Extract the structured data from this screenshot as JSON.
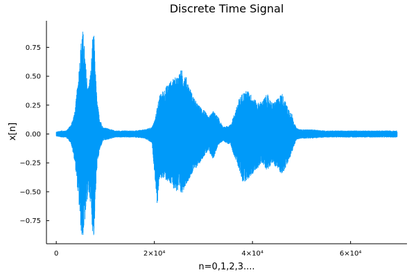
{
  "chart_data": {
    "type": "line",
    "title": "Discrete Time Signal",
    "xlabel": "n=0,1,2,3....",
    "ylabel": "x[n]",
    "xlim": [
      -2000,
      71500
    ],
    "ylim": [
      -0.95,
      0.98
    ],
    "x_ticks": [
      {
        "value": 0,
        "label": "0"
      },
      {
        "value": 20000,
        "label": "2×10⁴"
      },
      {
        "value": 40000,
        "label": "4×10⁴"
      },
      {
        "value": 60000,
        "label": "6×10⁴"
      }
    ],
    "y_ticks": [
      {
        "value": -0.75,
        "label": "−0.75"
      },
      {
        "value": -0.5,
        "label": "−0.50"
      },
      {
        "value": -0.25,
        "label": "−0.25"
      },
      {
        "value": 0.0,
        "label": "0.00"
      },
      {
        "value": 0.25,
        "label": "0.25"
      },
      {
        "value": 0.5,
        "label": "0.50"
      },
      {
        "value": 0.75,
        "label": "0.75"
      }
    ],
    "grid": false,
    "legend": false,
    "series": [
      {
        "color": "#009af9",
        "samples": 69500,
        "envelope": {
          "x": [
            0,
            1000,
            2000,
            3000,
            3800,
            4500,
            5000,
            5300,
            5600,
            6000,
            6500,
            7000,
            7400,
            7700,
            8000,
            8300,
            8800,
            9500,
            10500,
            12000,
            14000,
            16000,
            18000,
            19500,
            20200,
            20600,
            21000,
            21800,
            23000,
            24500,
            25500,
            26300,
            27000,
            28000,
            29000,
            30000,
            31000,
            32000,
            33000,
            34000,
            35500,
            36500,
            37200,
            38000,
            39000,
            40000,
            41000,
            42000,
            43000,
            44000,
            45000,
            46000,
            47000,
            48000,
            48500,
            49000,
            50000,
            52000,
            55000,
            58000,
            61000,
            64000,
            67000,
            69500
          ],
          "upper": [
            0.02,
            0.03,
            0.03,
            0.08,
            0.2,
            0.5,
            0.78,
            0.92,
            0.85,
            0.6,
            0.4,
            0.55,
            0.82,
            0.88,
            0.55,
            0.3,
            0.15,
            0.06,
            0.05,
            0.03,
            0.03,
            0.03,
            0.04,
            0.06,
            0.14,
            0.25,
            0.33,
            0.38,
            0.45,
            0.5,
            0.56,
            0.52,
            0.43,
            0.32,
            0.25,
            0.22,
            0.15,
            0.2,
            0.15,
            0.06,
            0.08,
            0.2,
            0.3,
            0.36,
            0.38,
            0.33,
            0.27,
            0.29,
            0.35,
            0.27,
            0.3,
            0.36,
            0.25,
            0.18,
            0.1,
            0.05,
            0.04,
            0.04,
            0.03,
            0.03,
            0.03,
            0.03,
            0.03,
            0.03
          ],
          "lower": [
            -0.02,
            -0.03,
            -0.03,
            -0.08,
            -0.25,
            -0.55,
            -0.82,
            -0.93,
            -0.85,
            -0.7,
            -0.5,
            -0.6,
            -0.85,
            -0.9,
            -0.55,
            -0.3,
            -0.15,
            -0.06,
            -0.05,
            -0.03,
            -0.03,
            -0.03,
            -0.04,
            -0.08,
            -0.42,
            -0.63,
            -0.4,
            -0.38,
            -0.43,
            -0.5,
            -0.53,
            -0.45,
            -0.4,
            -0.32,
            -0.27,
            -0.2,
            -0.15,
            -0.22,
            -0.1,
            -0.06,
            -0.1,
            -0.22,
            -0.3,
            -0.42,
            -0.4,
            -0.35,
            -0.3,
            -0.25,
            -0.32,
            -0.25,
            -0.3,
            -0.35,
            -0.28,
            -0.17,
            -0.1,
            -0.05,
            -0.04,
            -0.04,
            -0.03,
            -0.03,
            -0.03,
            -0.03,
            -0.03,
            -0.03
          ]
        }
      }
    ]
  }
}
